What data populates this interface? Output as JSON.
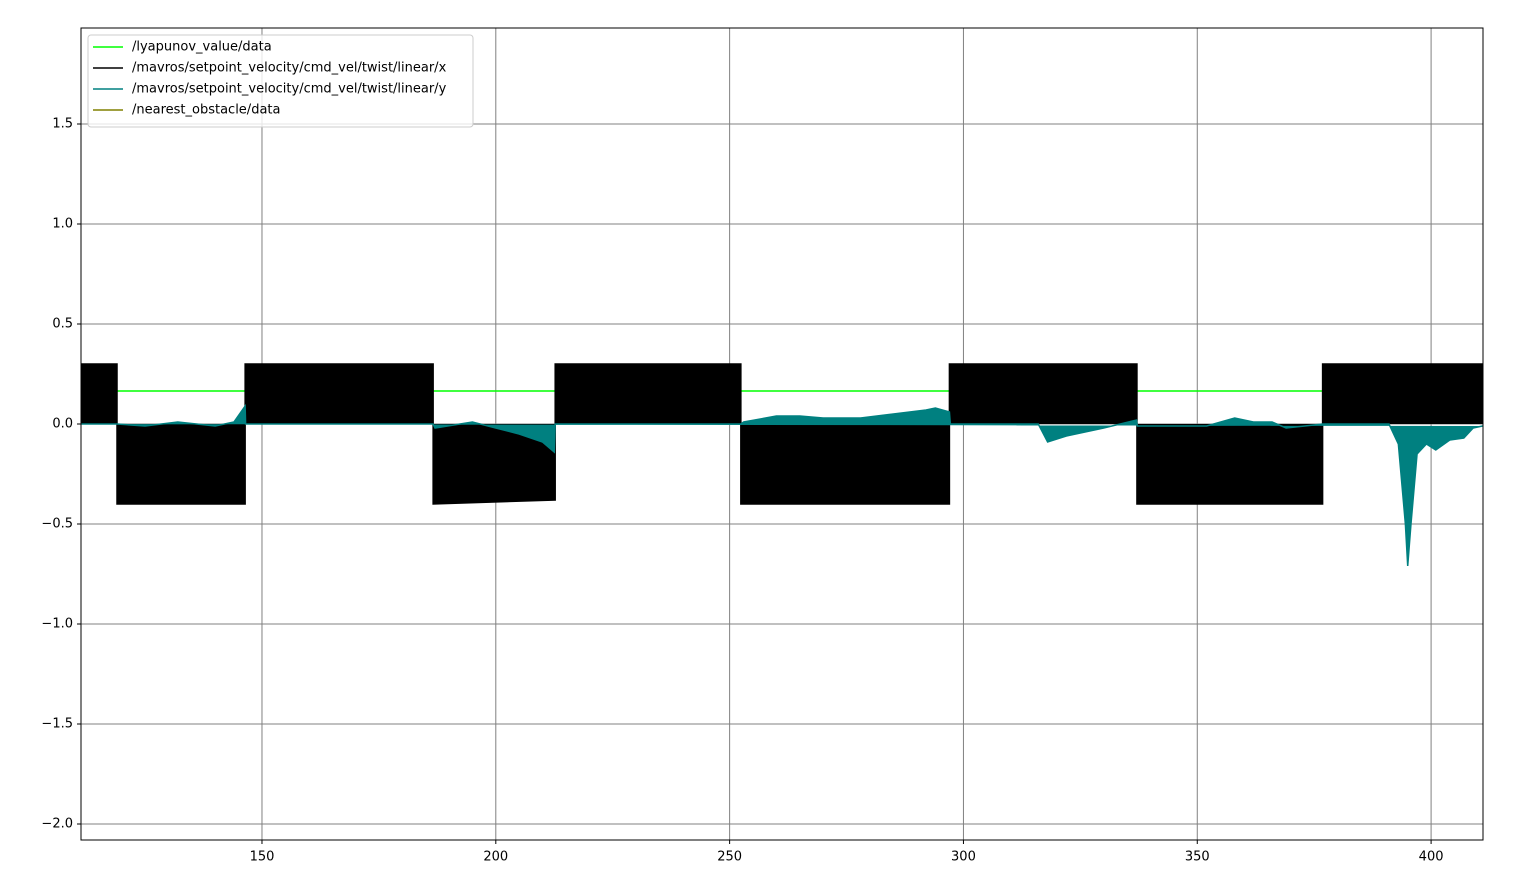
{
  "chart_data": {
    "type": "line",
    "xlim": [
      111.3,
      411.1
    ],
    "ylim": [
      -2.08,
      1.98
    ],
    "xticks": [
      150,
      200,
      250,
      300,
      350,
      400
    ],
    "yticks": [
      {
        "value": -2.0,
        "label": "−2.0"
      },
      {
        "value": -1.5,
        "label": "−1.5"
      },
      {
        "value": -1.0,
        "label": "−1.0"
      },
      {
        "value": -0.5,
        "label": "−0.5"
      },
      {
        "value": 0.0,
        "label": "0.0"
      },
      {
        "value": 0.5,
        "label": "0.5"
      },
      {
        "value": 1.0,
        "label": "1.0"
      },
      {
        "value": 1.5,
        "label": "1.5"
      }
    ],
    "grid": true,
    "legend": "upper left",
    "series": [
      {
        "name": "/lyapunov_value/data",
        "color": "#00ff00",
        "fill": false,
        "x": [
          111.3,
          411.1
        ],
        "values": [
          0.165,
          0.165
        ]
      },
      {
        "name": "/mavros/setpoint_velocity/cmd_vel/twist/linear/x",
        "color": "#000000",
        "fill": true,
        "x": [
          111.3,
          111.3,
          119,
          119,
          146.4,
          146.4,
          186.6,
          186.6,
          212.7,
          212.7,
          252.4,
          252.4,
          297,
          297,
          337.1,
          337.1,
          376.8,
          376.8,
          411.1,
          411.1
        ],
        "values": [
          0,
          0.3,
          0.3,
          -0.4,
          -0.4,
          0.3,
          0.3,
          -0.4,
          -0.38,
          0.3,
          0.3,
          -0.4,
          -0.4,
          0.3,
          0.3,
          -0.4,
          -0.4,
          0.3,
          0.3,
          0
        ]
      },
      {
        "name": "/mavros/setpoint_velocity/cmd_vel/twist/linear/y",
        "color": "#008080",
        "fill": true,
        "x": [
          111.3,
          119,
          125,
          132,
          140,
          144,
          146.4,
          146.5,
          186.6,
          187,
          195,
          200,
          205,
          210,
          212.5,
          212.7,
          252.4,
          253,
          260,
          265,
          270,
          278,
          285,
          292,
          294,
          297,
          297.2,
          316,
          318,
          322,
          326,
          330,
          337,
          337.2,
          345,
          352,
          358,
          362,
          366,
          369,
          373,
          376.8,
          391,
          393,
          394.5,
          395,
          395.7,
          397,
          399,
          401,
          404,
          407,
          409,
          411
        ],
        "values": [
          0,
          0,
          -0.01,
          0.01,
          -0.01,
          0.01,
          0.09,
          0,
          0,
          -0.02,
          0.01,
          -0.02,
          -0.05,
          -0.09,
          -0.14,
          0,
          0,
          0.01,
          0.04,
          0.04,
          0.03,
          0.03,
          0.05,
          0.07,
          0.08,
          0.06,
          0,
          0,
          -0.09,
          -0.06,
          -0.04,
          -0.02,
          0.02,
          -0.01,
          -0.01,
          -0.01,
          0.03,
          0.01,
          0.01,
          -0.02,
          -0.01,
          0,
          0,
          -0.1,
          -0.5,
          -0.71,
          -0.5,
          -0.15,
          -0.1,
          -0.13,
          -0.08,
          -0.07,
          -0.02,
          -0.01
        ]
      },
      {
        "name": "/nearest_obstacle/data",
        "color": "#808000",
        "fill": false,
        "x": [],
        "values": []
      }
    ]
  }
}
